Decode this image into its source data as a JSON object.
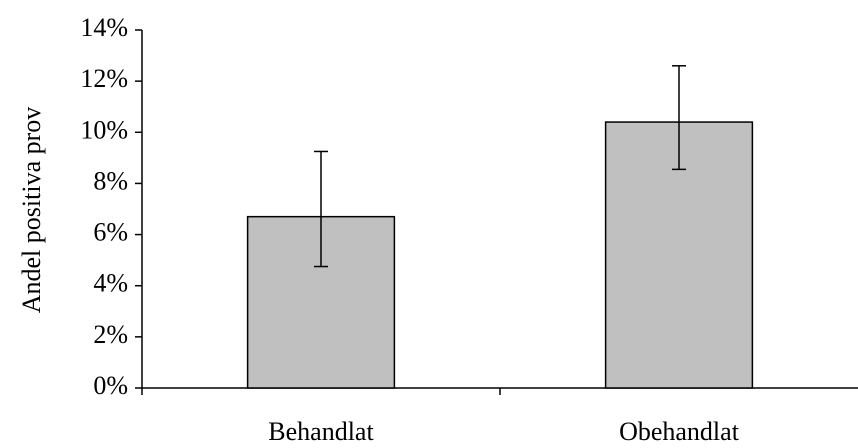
{
  "colors": {
    "bar_fill": "#c0c0c0",
    "bar_stroke": "#000000",
    "axis": "#000000",
    "error_bar": "#000000"
  },
  "chart_data": {
    "type": "bar",
    "categories": [
      "Behandlat",
      "Obehandlat"
    ],
    "values": [
      6.7,
      10.4
    ],
    "error_bars": {
      "lower": [
        4.75,
        8.55
      ],
      "upper": [
        9.25,
        12.6
      ]
    },
    "title": "",
    "xlabel": "",
    "ylabel": "Andel positiva prov",
    "ylim": [
      0,
      14
    ],
    "yticks": [
      0,
      2,
      4,
      6,
      8,
      10,
      12,
      14
    ],
    "ytick_labels": [
      "0%",
      "2%",
      "4%",
      "6%",
      "8%",
      "10%",
      "12%",
      "14%"
    ],
    "grid": false,
    "legend": "none"
  }
}
